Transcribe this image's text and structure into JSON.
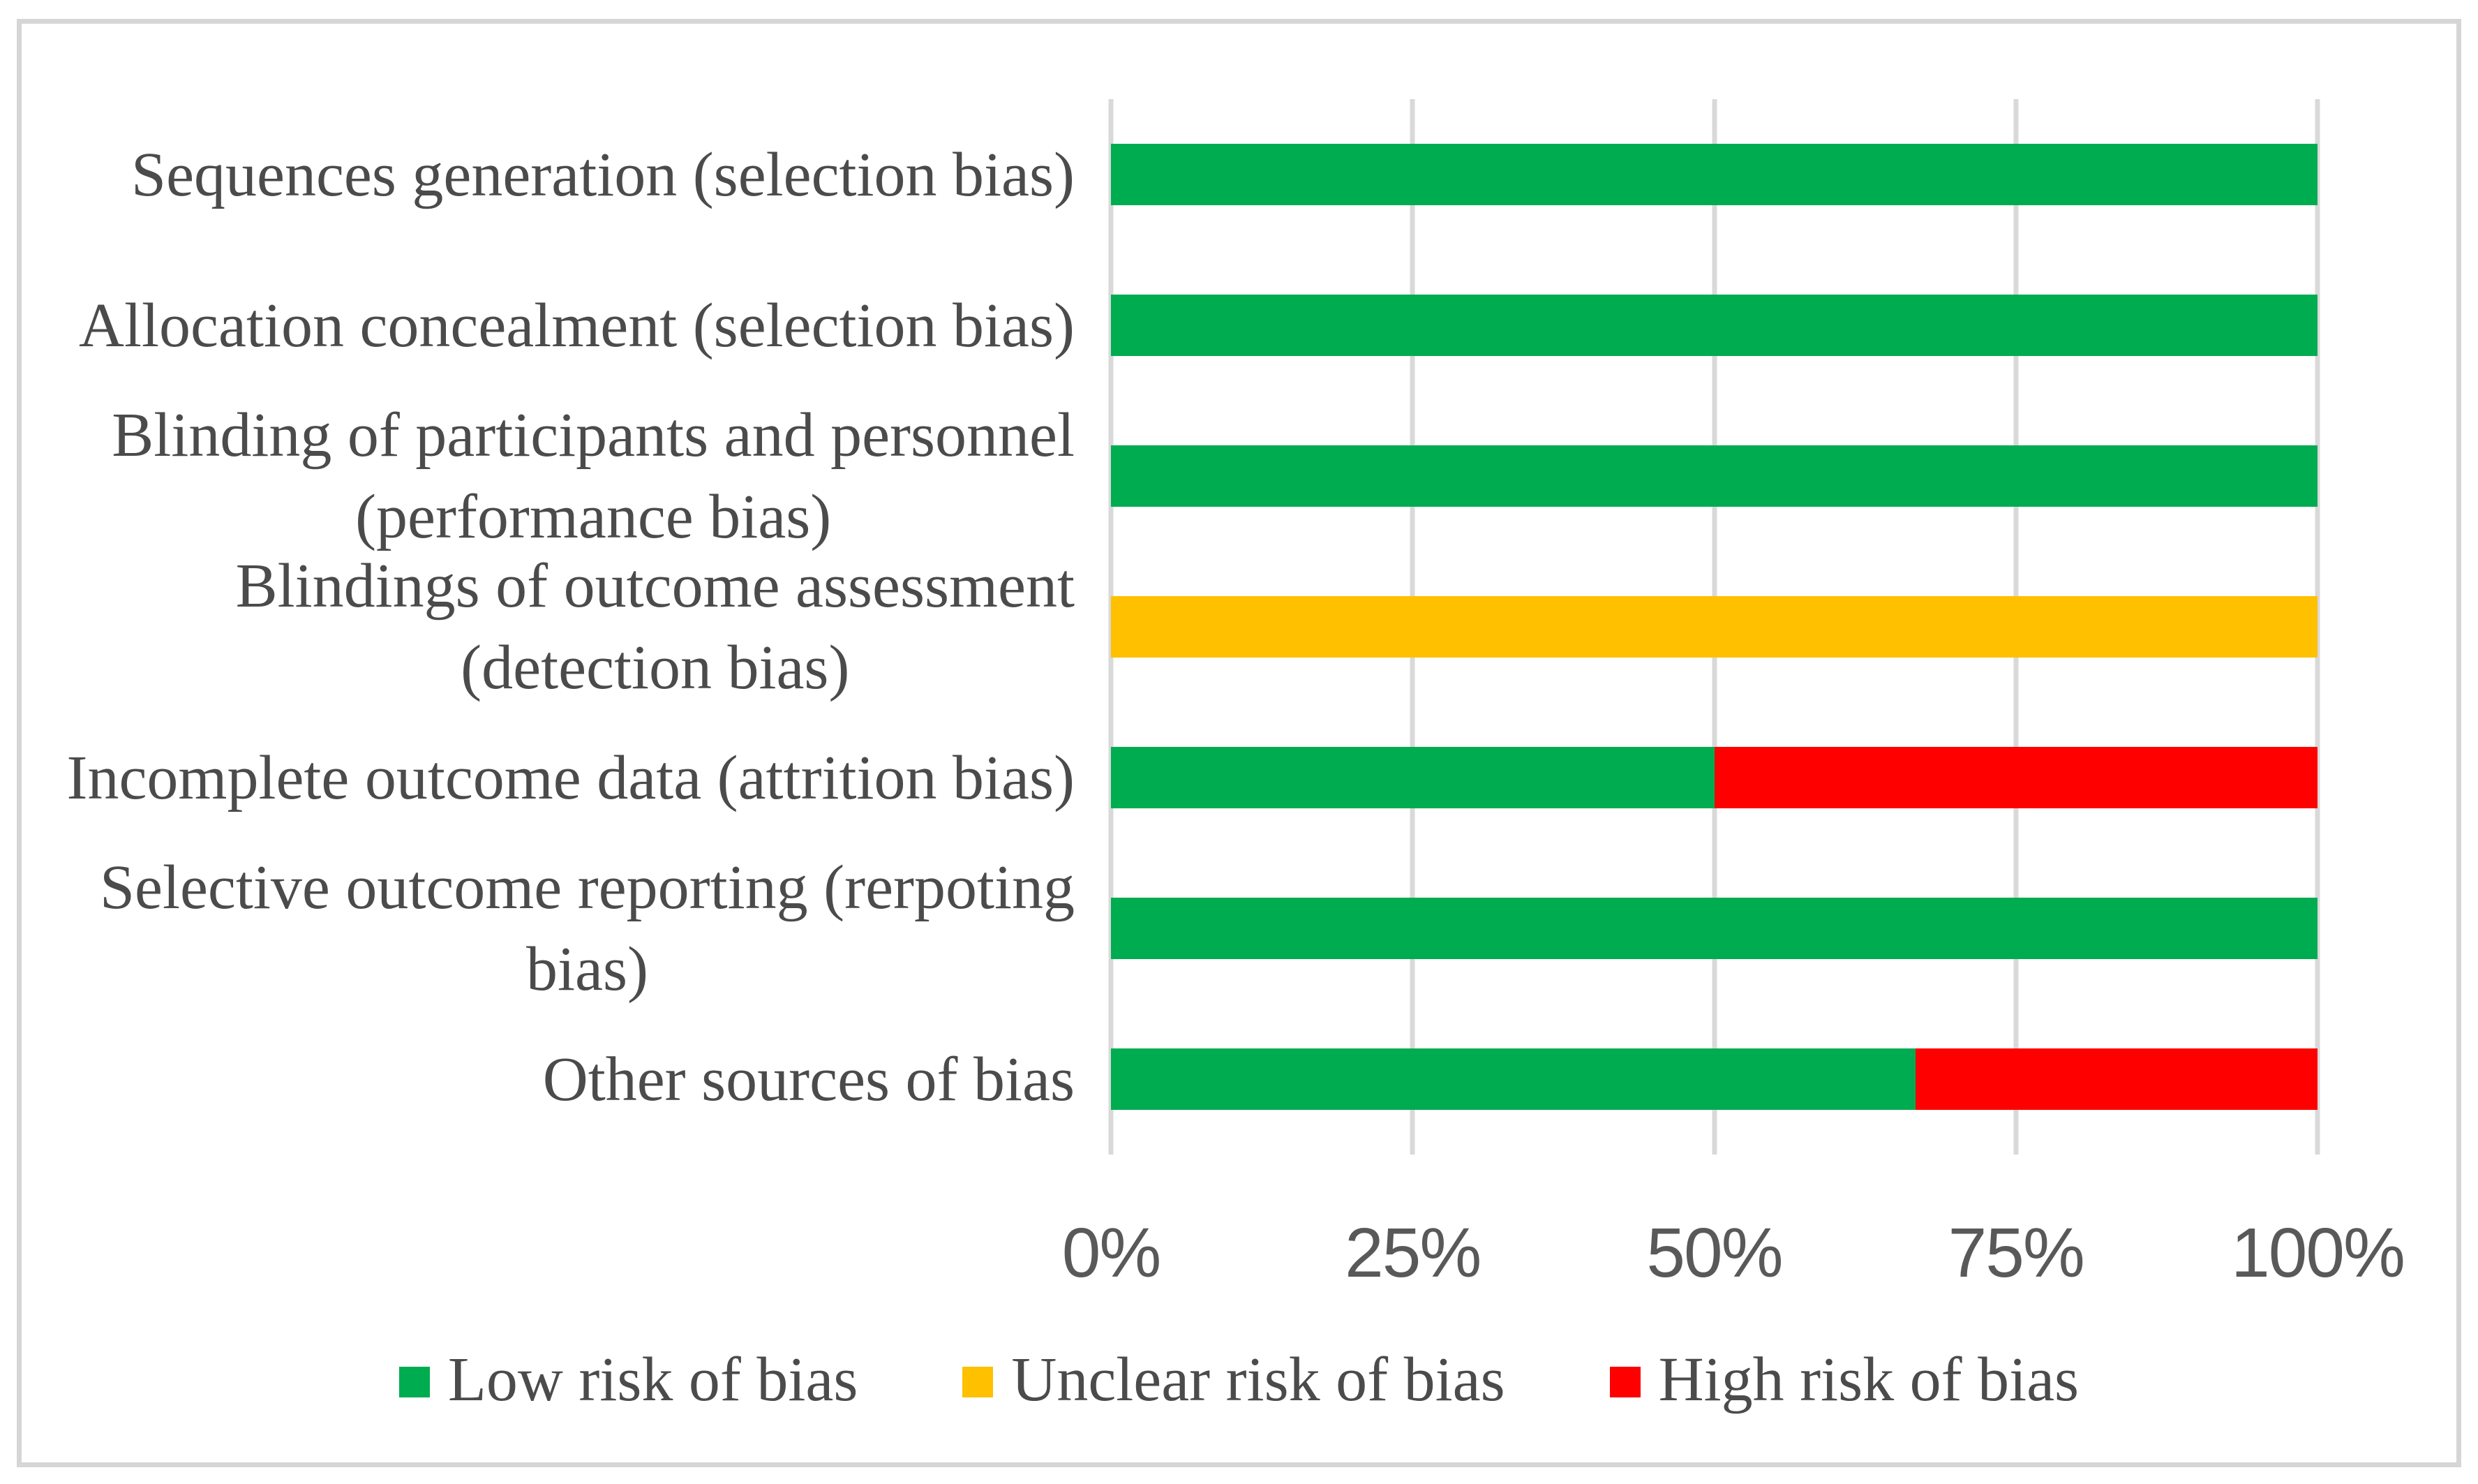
{
  "figure": {
    "background": "#ffffff",
    "border_color": "#d6d6d6"
  },
  "colors": {
    "grid": "#d9d9d9",
    "tick_text": "#595959",
    "label_text": "#4b4b4b",
    "low_risk": "#00AC50",
    "unclear_risk": "#FFC000",
    "high_risk": "#FF0000"
  },
  "chart_data": {
    "type": "bar",
    "orientation": "horizontal",
    "stacked": true,
    "units": "percent",
    "grid": true,
    "legend_position": "bottom",
    "categories": [
      "Sequences generation (selection bias)",
      "Allocation concealment (selection bias)",
      "Blinding of participants and personnel\n(performance bias)",
      "Blindings of outcome assessment\n(detection bias)",
      "Incomplete outcome data (attrition bias)",
      "Selective outcome reporting (rerpoting\nbias)",
      "Other sources of bias"
    ],
    "series": [
      {
        "name": "Low risk of bias",
        "color": "#00AC50",
        "values": [
          100,
          100,
          100,
          0,
          50,
          100,
          66.67
        ]
      },
      {
        "name": "Unclear risk of bias",
        "color": "#FFC000",
        "values": [
          0,
          0,
          0,
          100,
          0,
          0,
          0
        ]
      },
      {
        "name": "High risk of bias",
        "color": "#FF0000",
        "values": [
          0,
          0,
          0,
          0,
          50,
          0,
          33.33
        ]
      }
    ],
    "x_axis": {
      "min": 0,
      "max": 100,
      "tick_labels": [
        "0%",
        "25%",
        "50%",
        "75%",
        "100%"
      ]
    }
  }
}
